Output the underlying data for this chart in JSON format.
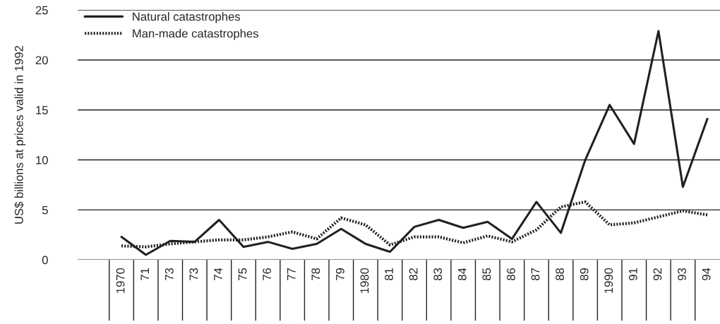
{
  "chart_data": {
    "type": "line",
    "ylabel": "US$ billions at prices valid in 1992",
    "categories": [
      "1970",
      "71",
      "73",
      "73",
      "74",
      "75",
      "76",
      "77",
      "78",
      "79",
      "1980",
      "81",
      "82",
      "83",
      "84",
      "85",
      "86",
      "87",
      "88",
      "89",
      "1990",
      "91",
      "92",
      "93",
      "94"
    ],
    "series": [
      {
        "name": "Natural catastrophes",
        "color": "#231f20",
        "line_style": "solid",
        "values": [
          2.3,
          0.5,
          1.9,
          1.8,
          4.0,
          1.3,
          1.8,
          1.1,
          1.6,
          3.1,
          1.6,
          0.8,
          3.3,
          4.0,
          3.2,
          3.8,
          2.1,
          5.8,
          2.7,
          10.0,
          15.5,
          11.6,
          22.9,
          7.3,
          14.1
        ]
      },
      {
        "name": "Man-made catastrophes",
        "color": "#231f20",
        "line_style": "dotted",
        "values": [
          1.4,
          1.3,
          1.6,
          1.8,
          2.0,
          2.0,
          2.3,
          2.8,
          2.1,
          4.2,
          3.5,
          1.5,
          2.3,
          2.3,
          1.7,
          2.4,
          1.8,
          3.0,
          5.3,
          5.8,
          3.5,
          3.7,
          4.3,
          4.9,
          4.5
        ]
      }
    ],
    "ylim": [
      0,
      25
    ],
    "yticks": [
      0,
      5,
      10,
      15,
      20,
      25
    ],
    "grid": "y",
    "legend": "top left",
    "marker": "none"
  }
}
